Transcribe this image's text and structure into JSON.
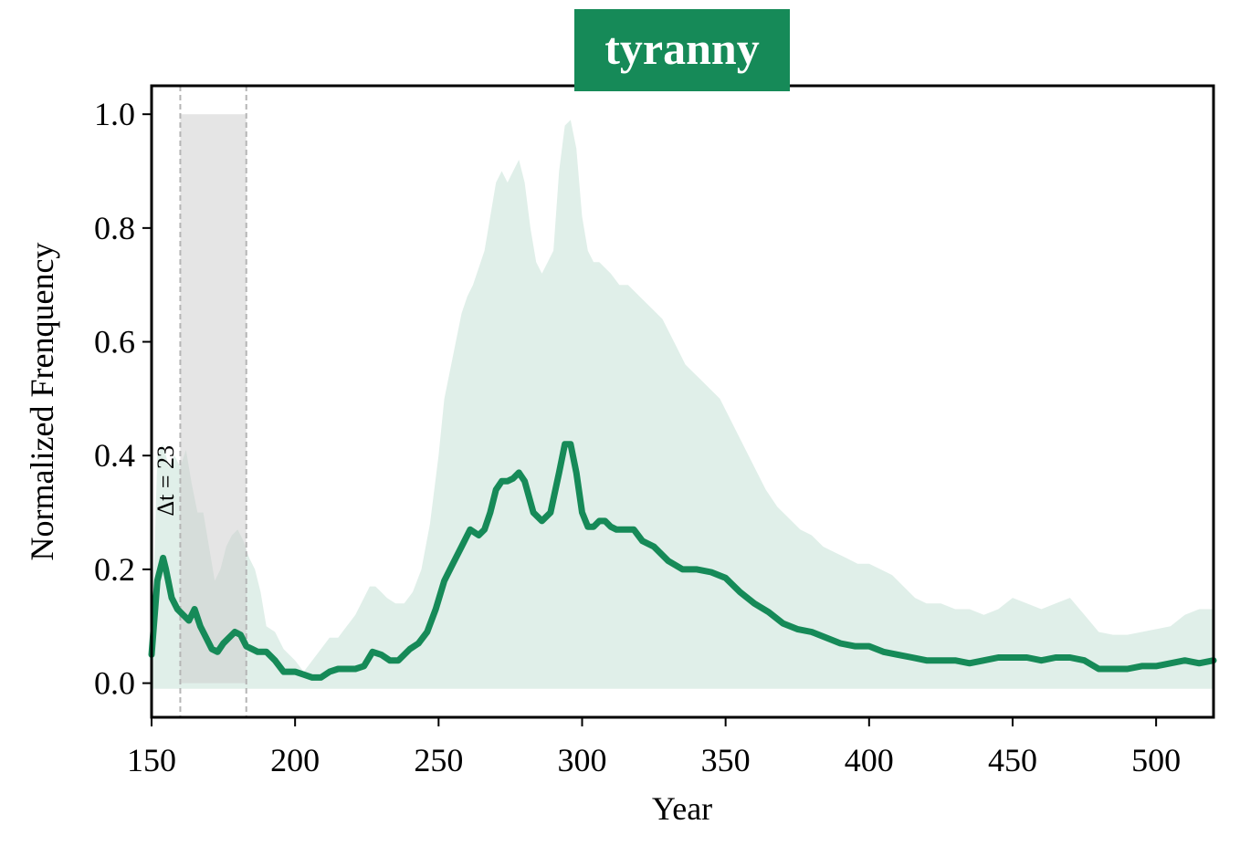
{
  "chart_data": {
    "type": "line",
    "title": "tyranny",
    "xlabel": "Year",
    "ylabel": "Normalized Frenquency",
    "xlim": [
      150,
      520
    ],
    "ylim": [
      -0.06,
      1.05
    ],
    "xticks": [
      150,
      200,
      250,
      300,
      350,
      400,
      450,
      500
    ],
    "yticks": [
      0.0,
      0.2,
      0.4,
      0.6,
      0.8,
      1.0
    ],
    "ytick_labels": [
      "0.0",
      "0.2",
      "0.4",
      "0.6",
      "0.8",
      "1.0"
    ],
    "grid": false,
    "colors": {
      "line": "#168a58",
      "band": "#e0efe9",
      "title_bg": "#168a58",
      "highlight": "#cccccc",
      "guide": "#b5b5b5"
    },
    "highlight": {
      "x_start": 160,
      "x_end": 183,
      "y_top": 1.0,
      "label": "Δt = 23"
    },
    "series": [
      {
        "x": [
          150,
          152,
          154,
          155,
          157,
          159,
          161,
          163,
          165,
          167,
          169,
          171,
          173,
          175,
          177,
          179,
          181,
          183,
          185,
          187,
          190,
          193,
          196,
          200,
          203,
          206,
          209,
          212,
          215,
          218,
          221,
          224,
          227,
          230,
          233,
          236,
          240,
          243,
          246,
          249,
          252,
          255,
          258,
          261,
          264,
          266,
          268,
          270,
          272,
          274,
          276,
          278,
          280,
          283,
          286,
          289,
          292,
          294,
          296,
          298,
          300,
          302,
          304,
          306,
          308,
          310,
          312,
          315,
          318,
          321,
          325,
          330,
          335,
          340,
          345,
          350,
          355,
          360,
          365,
          370,
          375,
          380,
          385,
          390,
          395,
          400,
          405,
          410,
          415,
          420,
          425,
          430,
          435,
          440,
          445,
          450,
          455,
          460,
          465,
          470,
          475,
          480,
          485,
          490,
          495,
          500,
          505,
          510,
          515,
          520
        ],
        "y": [
          0.05,
          0.18,
          0.22,
          0.2,
          0.15,
          0.13,
          0.12,
          0.11,
          0.13,
          0.1,
          0.08,
          0.06,
          0.055,
          0.07,
          0.08,
          0.09,
          0.085,
          0.065,
          0.06,
          0.055,
          0.055,
          0.04,
          0.02,
          0.02,
          0.015,
          0.01,
          0.01,
          0.02,
          0.025,
          0.025,
          0.025,
          0.03,
          0.055,
          0.05,
          0.04,
          0.04,
          0.06,
          0.07,
          0.09,
          0.13,
          0.18,
          0.21,
          0.24,
          0.27,
          0.26,
          0.27,
          0.3,
          0.34,
          0.355,
          0.355,
          0.36,
          0.37,
          0.355,
          0.3,
          0.285,
          0.3,
          0.37,
          0.42,
          0.42,
          0.37,
          0.3,
          0.275,
          0.275,
          0.285,
          0.285,
          0.275,
          0.27,
          0.27,
          0.27,
          0.25,
          0.24,
          0.215,
          0.2,
          0.2,
          0.195,
          0.185,
          0.16,
          0.14,
          0.125,
          0.105,
          0.095,
          0.09,
          0.08,
          0.07,
          0.065,
          0.065,
          0.055,
          0.05,
          0.045,
          0.04,
          0.04,
          0.04,
          0.035,
          0.04,
          0.045,
          0.045,
          0.045,
          0.04,
          0.045,
          0.045,
          0.04,
          0.025,
          0.025,
          0.025,
          0.03,
          0.03,
          0.035,
          0.04,
          0.035,
          0.04
        ]
      }
    ],
    "band": {
      "x": [
        150,
        152,
        154,
        156,
        158,
        160,
        162,
        164,
        166,
        168,
        170,
        172,
        174,
        176,
        178,
        180,
        182,
        184,
        186,
        188,
        190,
        193,
        196,
        200,
        203,
        206,
        209,
        212,
        215,
        218,
        221,
        224,
        226,
        228,
        230,
        232,
        235,
        238,
        241,
        244,
        247,
        250,
        252,
        254,
        256,
        258,
        260,
        262,
        264,
        266,
        268,
        270,
        272,
        274,
        276,
        278,
        280,
        282,
        284,
        286,
        288,
        290,
        292,
        294,
        296,
        298,
        300,
        302,
        304,
        306,
        308,
        310,
        313,
        316,
        320,
        324,
        328,
        332,
        336,
        340,
        344,
        348,
        352,
        356,
        360,
        364,
        368,
        372,
        376,
        380,
        384,
        388,
        392,
        396,
        400,
        404,
        408,
        412,
        416,
        420,
        425,
        430,
        435,
        440,
        445,
        450,
        455,
        460,
        465,
        470,
        475,
        480,
        485,
        490,
        495,
        500,
        505,
        510,
        515,
        520
      ],
      "upper": [
        0.05,
        0.4,
        0.42,
        0.38,
        0.4,
        0.38,
        0.41,
        0.35,
        0.3,
        0.3,
        0.24,
        0.18,
        0.2,
        0.24,
        0.26,
        0.27,
        0.25,
        0.22,
        0.2,
        0.16,
        0.1,
        0.09,
        0.06,
        0.04,
        0.02,
        0.04,
        0.06,
        0.08,
        0.08,
        0.1,
        0.12,
        0.15,
        0.17,
        0.17,
        0.16,
        0.15,
        0.14,
        0.14,
        0.16,
        0.2,
        0.28,
        0.4,
        0.5,
        0.55,
        0.6,
        0.65,
        0.68,
        0.7,
        0.73,
        0.76,
        0.82,
        0.88,
        0.9,
        0.88,
        0.9,
        0.92,
        0.88,
        0.8,
        0.74,
        0.72,
        0.74,
        0.76,
        0.9,
        0.98,
        0.99,
        0.94,
        0.82,
        0.76,
        0.74,
        0.74,
        0.73,
        0.72,
        0.7,
        0.7,
        0.68,
        0.66,
        0.64,
        0.6,
        0.56,
        0.54,
        0.52,
        0.5,
        0.46,
        0.42,
        0.38,
        0.34,
        0.31,
        0.29,
        0.27,
        0.26,
        0.24,
        0.23,
        0.22,
        0.21,
        0.21,
        0.2,
        0.19,
        0.17,
        0.15,
        0.14,
        0.14,
        0.13,
        0.13,
        0.12,
        0.13,
        0.15,
        0.14,
        0.13,
        0.14,
        0.15,
        0.12,
        0.09,
        0.085,
        0.085,
        0.09,
        0.095,
        0.1,
        0.12,
        0.13,
        0.13
      ],
      "lower": -0.01
    }
  }
}
